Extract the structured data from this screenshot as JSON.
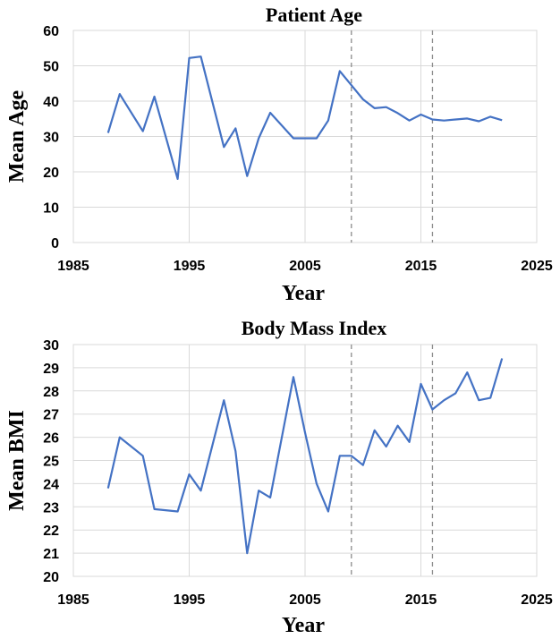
{
  "colors": {
    "series": "#4472c4",
    "grid": "#d9d9d9",
    "reference": "#8c8c8c"
  },
  "chart_data": [
    {
      "type": "line",
      "title": "Patient Age",
      "xlabel": "Year",
      "ylabel": "Mean Age",
      "xlim": [
        1985,
        2025
      ],
      "ylim": [
        0,
        60
      ],
      "xticks": [
        1985,
        1995,
        2005,
        2015,
        2025
      ],
      "yticks": [
        0,
        10,
        20,
        30,
        40,
        50,
        60
      ],
      "grid": true,
      "reference_lines_x": [
        2009,
        2016
      ],
      "series": [
        {
          "x": [
            1988,
            1989,
            1991,
            1992,
            1994,
            1995,
            1996,
            1998,
            1999,
            2000,
            2001,
            2002,
            2004,
            2005,
            2006,
            2007,
            2008,
            2009,
            2010,
            2011,
            2012,
            2013,
            2014,
            2015,
            2016,
            2017,
            2018,
            2019,
            2020,
            2021,
            2022
          ],
          "values": [
            31,
            42,
            31.5,
            41.3,
            18,
            52.2,
            52.6,
            27,
            32.3,
            18.8,
            29.5,
            36.7,
            29.5,
            29.5,
            29.5,
            34.5,
            48.5,
            44.5,
            40.5,
            38,
            38.3,
            36.6,
            34.5,
            36.2,
            34.8,
            34.5,
            34.8,
            35.1,
            34.3,
            35.6,
            34.6
          ]
        }
      ]
    },
    {
      "type": "line",
      "title": "Body Mass Index",
      "xlabel": "Year",
      "ylabel": "Mean BMI",
      "xlim": [
        1985,
        2025
      ],
      "ylim": [
        20,
        30
      ],
      "xticks": [
        1985,
        1995,
        2005,
        2015,
        2025
      ],
      "yticks": [
        20,
        21,
        22,
        23,
        24,
        25,
        26,
        27,
        28,
        29,
        30
      ],
      "grid": true,
      "reference_lines_x": [
        2009,
        2016
      ],
      "series": [
        {
          "x": [
            1988,
            1989,
            1991,
            1992,
            1994,
            1995,
            1996,
            1998,
            1999,
            2000,
            2001,
            2002,
            2004,
            2005,
            2006,
            2007,
            2008,
            2009,
            2010,
            2011,
            2012,
            2013,
            2014,
            2015,
            2016,
            2017,
            2018,
            2019,
            2020,
            2021,
            2022
          ],
          "values": [
            23.8,
            26,
            25.2,
            22.9,
            22.8,
            24.4,
            23.7,
            27.6,
            25.4,
            21,
            23.7,
            23.4,
            28.6,
            26.2,
            24,
            22.8,
            25.2,
            25.2,
            24.8,
            26.3,
            25.6,
            26.5,
            25.8,
            28.3,
            27.2,
            27.6,
            27.9,
            28.8,
            27.6,
            27.7,
            29.4
          ]
        }
      ]
    }
  ]
}
